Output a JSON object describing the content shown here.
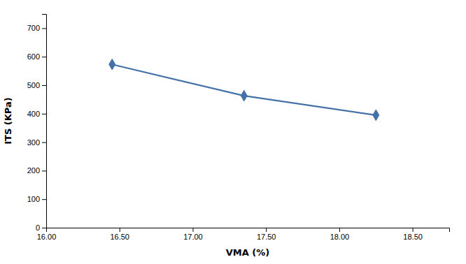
{
  "chart_data": {
    "type": "line",
    "x": [
      16.45,
      17.35,
      18.25
    ],
    "values": [
      573,
      463,
      395
    ],
    "color": "#4472A8",
    "marker": "diamond",
    "xlabel": "VMA (%)",
    "ylabel": "ITS (KPa)",
    "xlim": [
      16.0,
      18.75
    ],
    "ylim": [
      0,
      750
    ],
    "xticks": [
      {
        "value": 16.0,
        "label": "16.00"
      },
      {
        "value": 16.5,
        "label": "16.50"
      },
      {
        "value": 17.0,
        "label": "17.00"
      },
      {
        "value": 17.5,
        "label": "17.50"
      },
      {
        "value": 18.0,
        "label": "18.00"
      },
      {
        "value": 18.5,
        "label": "18.50"
      }
    ],
    "yticks": [
      0,
      100,
      200,
      300,
      400,
      500,
      600,
      700
    ],
    "grid": false
  }
}
